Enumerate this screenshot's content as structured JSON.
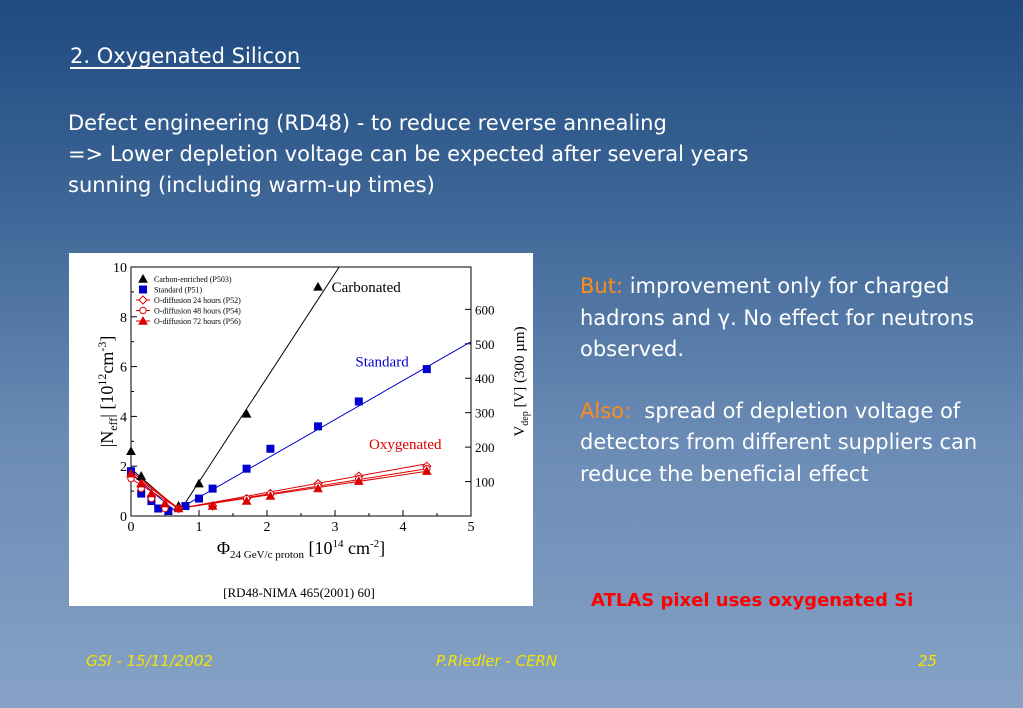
{
  "slide": {
    "heading": "2. Oxygenated Silicon",
    "intro_lines": [
      "Defect engineering (RD48) - to reduce reverse annealing",
      "=> Lower depletion voltage can be expected after several years",
      "sunning (including warm-up times)"
    ],
    "side_points": [
      {
        "label": "But:",
        "text": " improvement only for charged hadrons and γ. No effect for neutrons observed."
      },
      {
        "label": "Also:",
        "text": "  spread of depletion voltage of detectors from different suppliers can reduce the beneficial effect"
      }
    ],
    "atlas_note": "ATLAS pixel uses oxygenated Si",
    "footer": {
      "left": "GSI - 15/11/2002",
      "center": "P.Riedler - CERN",
      "right": "25"
    }
  },
  "colors": {
    "highlight": "#ff8c1a",
    "atlas": "#ff0000",
    "footer": "#f5e300",
    "carbonated": "#000000",
    "standard": "#0000cc",
    "oxygenated": "#dd0000"
  },
  "chart_data": {
    "type": "line",
    "xlabel": "Φ24 GeV/c proton [10¹⁴ cm⁻²]",
    "ylabel": "|Neff| [10¹²cm⁻³]",
    "y2label": "Vdep [V] (300 µm)",
    "xlim": [
      0,
      5
    ],
    "ylim": [
      0,
      10
    ],
    "x_ticks": [
      0,
      1,
      2,
      3,
      4,
      5
    ],
    "y_ticks": [
      0,
      2,
      4,
      6,
      8,
      10
    ],
    "y2_ticks": [
      100,
      200,
      300,
      400,
      500,
      600
    ],
    "y2_per_y1": 72.3,
    "legend_position": "top-left",
    "citation": "[RD48-NIMA 465(2001) 60]",
    "curve_labels": [
      {
        "text": "Carbonated",
        "x": 2.95,
        "y": 9.0,
        "color": "#000000"
      },
      {
        "text": "Standard",
        "x": 3.3,
        "y": 6.0,
        "color": "#0000cc"
      },
      {
        "text": "Oxygenated",
        "x": 3.5,
        "y": 2.7,
        "color": "#dd0000"
      }
    ],
    "series": [
      {
        "name": "Carbon-enriched (P503)",
        "color": "#000000",
        "marker": "triangle",
        "points": [
          [
            0,
            2.6
          ],
          [
            0.15,
            1.6
          ],
          [
            0.7,
            0.4
          ],
          [
            1.0,
            1.3
          ],
          [
            1.7,
            4.1
          ],
          [
            2.75,
            9.2
          ]
        ],
        "fit": [
          [
            0,
            1.9
          ],
          [
            0.72,
            0.2
          ],
          [
            3.3,
            11
          ]
        ]
      },
      {
        "name": "Standard (P51)",
        "color": "#0000cc",
        "marker": "square",
        "points": [
          [
            0,
            1.8
          ],
          [
            0.15,
            0.9
          ],
          [
            0.3,
            0.6
          ],
          [
            0.4,
            0.3
          ],
          [
            0.55,
            0.2
          ],
          [
            0.8,
            0.4
          ],
          [
            1.0,
            0.7
          ],
          [
            1.2,
            1.1
          ],
          [
            1.7,
            1.9
          ],
          [
            2.05,
            2.7
          ],
          [
            2.75,
            3.6
          ],
          [
            3.35,
            4.6
          ],
          [
            4.35,
            5.9
          ]
        ],
        "fit": [
          [
            0,
            1.7
          ],
          [
            0.65,
            0.2
          ],
          [
            5,
            7.0
          ]
        ]
      },
      {
        "name": "O-diffusion 24 hours (P52)",
        "color": "#dd0000",
        "marker": "diamond-open",
        "points": [
          [
            0,
            1.6
          ],
          [
            0.15,
            1.2
          ],
          [
            0.3,
            0.8
          ],
          [
            0.5,
            0.4
          ],
          [
            0.7,
            0.3
          ],
          [
            1.2,
            0.4
          ],
          [
            1.7,
            0.7
          ],
          [
            2.05,
            0.9
          ],
          [
            2.75,
            1.3
          ],
          [
            3.35,
            1.6
          ],
          [
            4.35,
            2.0
          ]
        ],
        "fit": [
          [
            0,
            1.7
          ],
          [
            0.7,
            0.3
          ],
          [
            4.35,
            2.1
          ]
        ]
      },
      {
        "name": "O-diffusion 48 hours (P54)",
        "color": "#dd0000",
        "marker": "circle-open",
        "points": [
          [
            0,
            1.5
          ],
          [
            0.15,
            1.1
          ],
          [
            0.3,
            0.7
          ],
          [
            0.5,
            0.3
          ],
          [
            0.7,
            0.3
          ],
          [
            1.2,
            0.4
          ],
          [
            1.7,
            0.7
          ],
          [
            2.05,
            0.9
          ],
          [
            2.75,
            1.2
          ],
          [
            3.35,
            1.5
          ],
          [
            4.35,
            1.9
          ]
        ],
        "fit": [
          [
            0,
            1.5
          ],
          [
            0.7,
            0.3
          ],
          [
            4.35,
            1.9
          ]
        ]
      },
      {
        "name": "O-diffusion 72 hours (P56)",
        "color": "#dd0000",
        "marker": "triangle",
        "points": [
          [
            0,
            1.7
          ],
          [
            0.15,
            1.3
          ],
          [
            0.3,
            0.9
          ],
          [
            0.5,
            0.5
          ],
          [
            0.7,
            0.3
          ],
          [
            1.2,
            0.4
          ],
          [
            1.7,
            0.6
          ],
          [
            2.05,
            0.8
          ],
          [
            2.75,
            1.1
          ],
          [
            3.35,
            1.4
          ],
          [
            4.35,
            1.8
          ]
        ],
        "fit": [
          [
            0,
            1.8
          ],
          [
            0.7,
            0.3
          ],
          [
            4.35,
            1.8
          ]
        ]
      }
    ]
  }
}
